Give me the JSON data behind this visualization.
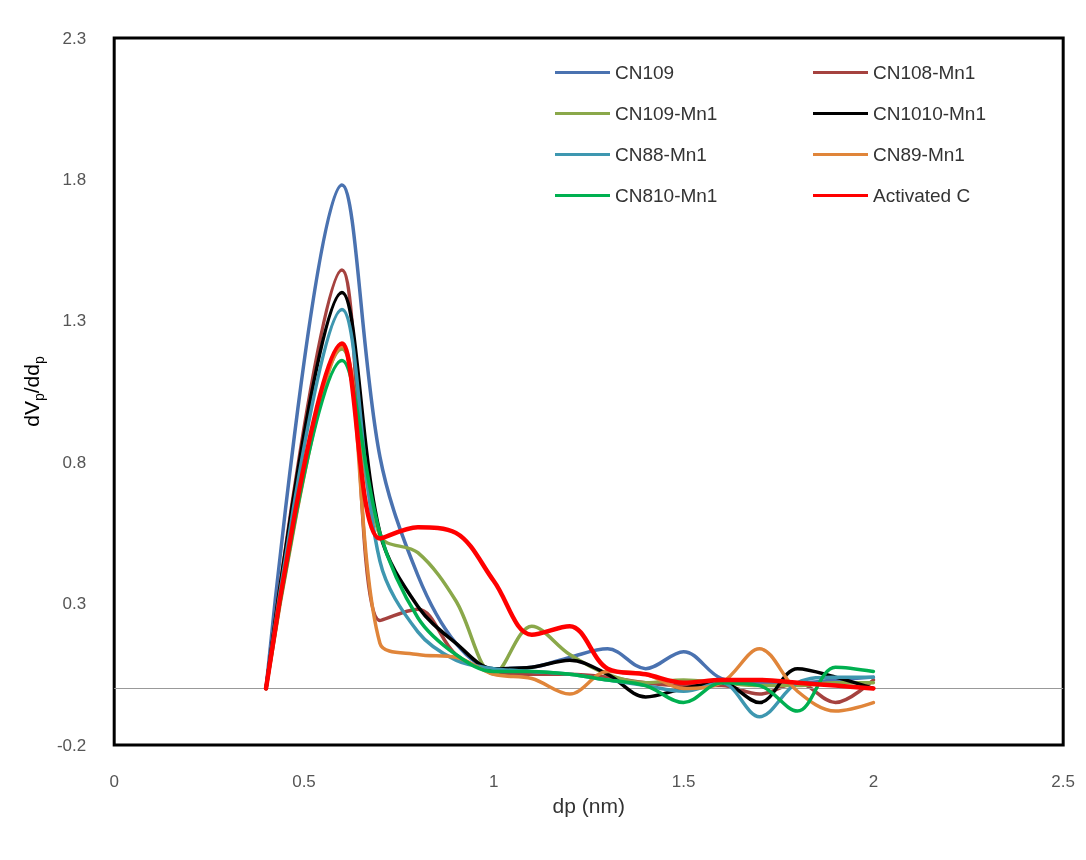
{
  "chart_data": {
    "type": "line",
    "xlabel": "dp (nm)",
    "ylabel": "dV$_{p}$/dd$_{p}$",
    "xlim": [
      0,
      2.5
    ],
    "xticks": [
      0,
      0.5,
      1,
      1.5,
      2,
      2.5
    ],
    "ylim": [
      -0.2,
      2.3
    ],
    "yticks": [
      -0.2,
      0.3,
      0.8,
      1.3,
      1.8,
      2.3
    ],
    "grid": false,
    "legend": "top right",
    "marker": "none",
    "line_style": "solid",
    "x": [
      0.4,
      0.6,
      0.7,
      0.8,
      0.9,
      1.0,
      1.1,
      1.2,
      1.3,
      1.4,
      1.5,
      1.6,
      1.7,
      1.8,
      1.9,
      2.0
    ],
    "series": [
      {
        "name": "CN109",
        "color": "#4a72b0",
        "values": [
          0,
          1.78,
          0.82,
          0.4,
          0.16,
          0.07,
          0.075,
          0.11,
          0.14,
          0.07,
          0.13,
          0.035,
          0.02,
          0.02,
          0.03,
          0.04
        ]
      },
      {
        "name": "CN108-Mn1",
        "color": "#a5423f",
        "values": [
          0,
          1.48,
          0.24,
          0.28,
          0.12,
          0.06,
          0.05,
          0.05,
          0.04,
          0.02,
          0.01,
          0.01,
          -0.02,
          0.02,
          -0.05,
          0.03
        ]
      },
      {
        "name": "CN109-Mn1",
        "color": "#8aa84a",
        "values": [
          0,
          1.2,
          0.54,
          0.48,
          0.31,
          0.05,
          0.22,
          0.12,
          0.05,
          0.02,
          0.03,
          0.02,
          0.01,
          0.01,
          0.02,
          0.02
        ]
      },
      {
        "name": "CN1010-Mn1",
        "color": "#000000",
        "values": [
          0,
          1.4,
          0.55,
          0.29,
          0.16,
          0.07,
          0.075,
          0.1,
          0.05,
          -0.03,
          0.0,
          0.02,
          -0.05,
          0.07,
          0.04,
          0.0
        ]
      },
      {
        "name": "CN88-Mn1",
        "color": "#3e97b0",
        "values": [
          0,
          1.34,
          0.45,
          0.2,
          0.1,
          0.07,
          0.06,
          0.05,
          0.03,
          0.01,
          -0.01,
          0.02,
          -0.1,
          0.02,
          0.04,
          0.04
        ]
      },
      {
        "name": "CN89-Mn1",
        "color": "#e0853a",
        "values": [
          0,
          1.21,
          0.16,
          0.12,
          0.11,
          0.05,
          0.035,
          -0.02,
          0.06,
          0.05,
          0.0,
          0.02,
          0.14,
          -0.01,
          -0.08,
          -0.05
        ]
      },
      {
        "name": "CN810-Mn1",
        "color": "#00b050",
        "values": [
          0,
          1.16,
          0.55,
          0.25,
          0.12,
          0.06,
          0.06,
          0.05,
          0.03,
          0.01,
          -0.05,
          0.02,
          0.01,
          -0.08,
          0.075,
          0.06
        ]
      },
      {
        "name": "Activated C",
        "color": "#ff0000",
        "values": [
          0,
          1.22,
          0.53,
          0.57,
          0.55,
          0.38,
          0.19,
          0.22,
          0.07,
          0.05,
          0.02,
          0.03,
          0.03,
          0.02,
          0.01,
          0.0
        ]
      }
    ]
  }
}
